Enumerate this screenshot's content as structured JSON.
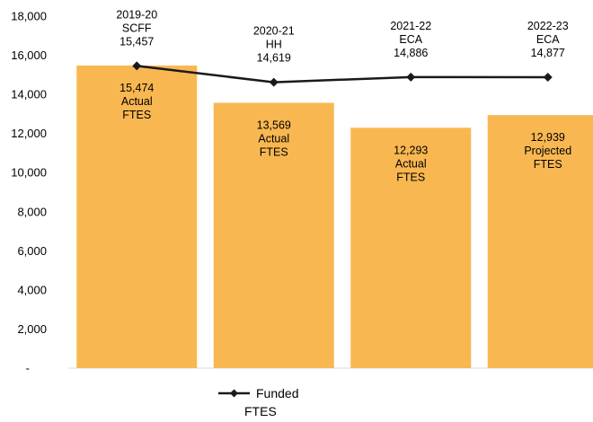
{
  "chart_data": {
    "type": "bar",
    "categories": [
      "2019-20",
      "2020-21",
      "2021-22",
      "2022-23"
    ],
    "ylim": [
      0,
      18000
    ],
    "yticks": [
      "-",
      "2,000",
      "4,000",
      "6,000",
      "8,000",
      "10,000",
      "12,000",
      "14,000",
      "16,000",
      "18,000"
    ],
    "grid": false,
    "legend_position": "bottom",
    "series": [
      {
        "kind": "bar",
        "color": "#F9B751",
        "values": [
          15474,
          13569,
          12293,
          12939
        ],
        "labels": [
          [
            "15,474",
            "Actual",
            "FTES"
          ],
          [
            "13,569",
            "Actual",
            "FTES"
          ],
          [
            "12,293",
            "Actual",
            "FTES"
          ],
          [
            "12,939",
            "Projected",
            "FTES"
          ]
        ]
      },
      {
        "kind": "line",
        "name": "Funded FTES",
        "legend_lines": [
          "Funded",
          "FTES"
        ],
        "color": "#1a1a1a",
        "values": [
          15457,
          14619,
          14886,
          14877
        ],
        "labels": [
          [
            "2019-20",
            "SCFF",
            "15,457"
          ],
          [
            "2020-21",
            "HH",
            "14,619"
          ],
          [
            "2021-22",
            "ECA",
            "14,886"
          ],
          [
            "2022-23",
            "ECA",
            "14,877"
          ]
        ]
      }
    ]
  }
}
